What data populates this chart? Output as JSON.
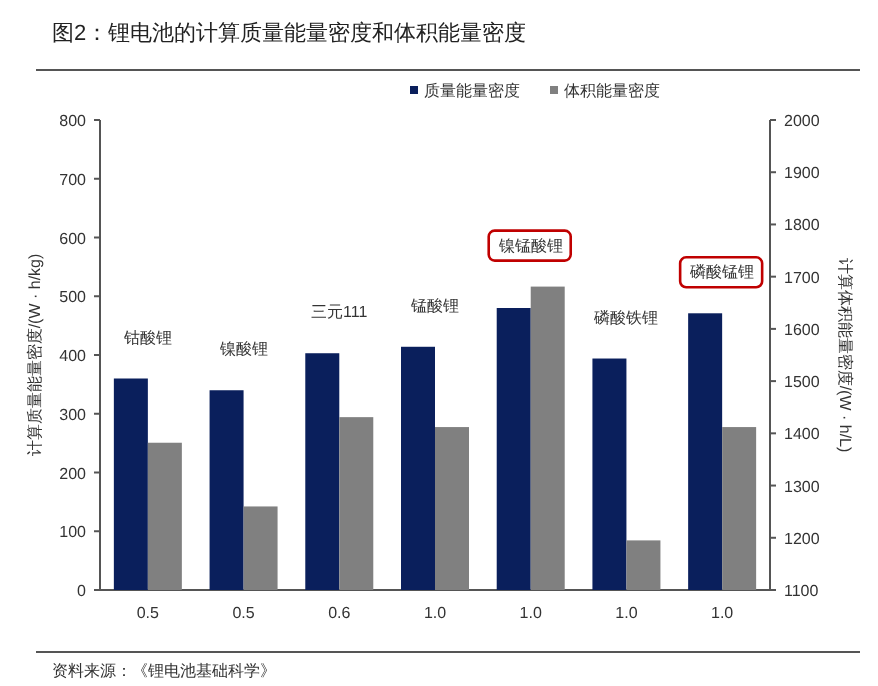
{
  "chart_data": {
    "type": "bar",
    "title": "图2：锂电池的计算质量能量密度和体积能量密度",
    "categories": [
      "0.5",
      "0.5",
      "0.6",
      "1.0",
      "1.0",
      "1.0",
      "1.0"
    ],
    "series": [
      {
        "name": "质量能量密度",
        "color": "#0a1f5c",
        "values": [
          360,
          340,
          403,
          414,
          480,
          394,
          471
        ]
      },
      {
        "name": "体积能量密度",
        "color": "#808080",
        "axis": "y2",
        "values": [
          1382,
          1260,
          1431,
          1412,
          1681,
          1195,
          1412
        ]
      }
    ],
    "ylabel": "计算质量能量密度/(W · h/kg)",
    "y2label": "计算体积能量密度/(W · h/L)",
    "ylim": [
      0,
      800
    ],
    "yticks": [
      0,
      100,
      200,
      300,
      400,
      500,
      600,
      700,
      800
    ],
    "y2lim": [
      1100,
      2000
    ],
    "y2ticks": [
      1100,
      1200,
      1300,
      1400,
      1500,
      1600,
      1700,
      1800,
      1900,
      2000
    ],
    "annotations": [
      "钴酸锂",
      "镍酸锂",
      "三元111",
      "锰酸锂",
      "镍锰酸锂",
      "磷酸铁锂",
      "磷酸锰锂",
      "资料来源：《锂电池基础科学》"
    ],
    "legend": "top",
    "grid": false
  }
}
